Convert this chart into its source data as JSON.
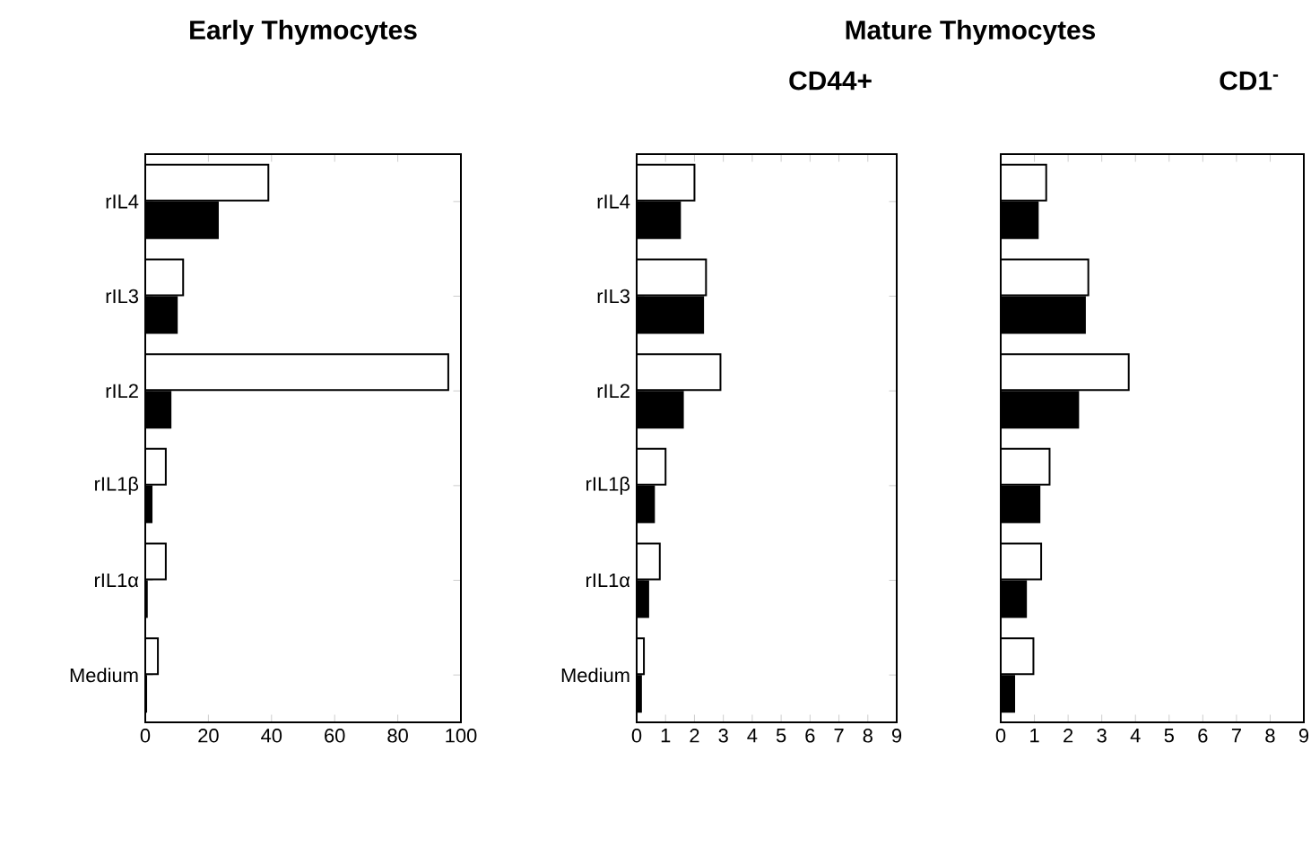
{
  "chart_data": [
    {
      "type": "bar",
      "orientation": "horizontal",
      "title": "Early Thymocytes",
      "categories": [
        "rIL4",
        "rIL3",
        "rIL2",
        "rIL1β",
        "rIL1α",
        "Medium"
      ],
      "series": [
        {
          "color": "#ffffff",
          "values": [
            39,
            12,
            96,
            6.5,
            6.5,
            4
          ]
        },
        {
          "color": "#000000",
          "values": [
            23,
            10,
            8,
            2,
            0.5,
            0.3
          ]
        }
      ],
      "xlim": [
        0,
        100
      ],
      "xticks": [
        0,
        20,
        40,
        60,
        80,
        100
      ]
    },
    {
      "type": "bar",
      "orientation": "horizontal",
      "title": "Mature Thymocytes",
      "subtitle": "CD44+",
      "categories": [
        "rIL4",
        "rIL3",
        "rIL2",
        "rIL1β",
        "rIL1α",
        "Medium"
      ],
      "series": [
        {
          "color": "#ffffff",
          "values": [
            2.0,
            2.4,
            2.9,
            1.0,
            0.8,
            0.25
          ]
        },
        {
          "color": "#000000",
          "values": [
            1.5,
            2.3,
            1.6,
            0.6,
            0.4,
            0.15
          ]
        }
      ],
      "xlim": [
        0,
        9
      ],
      "xticks": [
        0,
        1,
        2,
        3,
        4,
        5,
        6,
        7,
        8,
        9
      ]
    },
    {
      "type": "bar",
      "orientation": "horizontal",
      "subtitle": "CD1$^{-}$",
      "categories": [
        null,
        null,
        null,
        null,
        null,
        null
      ],
      "series": [
        {
          "color": "#ffffff",
          "values": [
            1.35,
            2.6,
            3.8,
            1.45,
            1.2,
            0.97
          ]
        },
        {
          "color": "#000000",
          "values": [
            1.1,
            2.5,
            2.3,
            1.15,
            0.75,
            0.4
          ]
        }
      ],
      "xlim": [
        0,
        9
      ],
      "xticks": [
        0,
        1,
        2,
        3,
        4,
        5,
        6,
        7,
        8,
        9
      ]
    }
  ]
}
